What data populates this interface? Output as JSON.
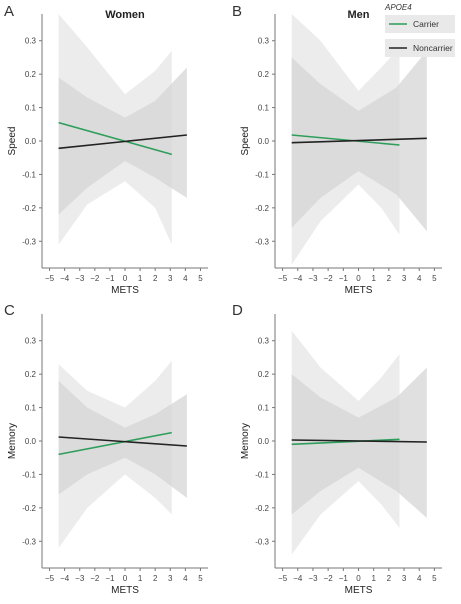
{
  "colors": {
    "carrier": "#2e9e5b",
    "noncarrier": "#222222",
    "band_carrier": "#e6e6e6",
    "band_noncarrier": "#d6d6d6",
    "axis": "#777777",
    "tick_text": "#444444"
  },
  "legend": {
    "title": "APOE4",
    "items": [
      {
        "label": "Carrier",
        "color": "#2e9e5b"
      },
      {
        "label": "Noncarrier",
        "color": "#222222"
      }
    ],
    "placement": "top-right of panel B"
  },
  "chart_data": [
    {
      "panel": "A",
      "type": "line",
      "title": "Women",
      "xlabel": "METS",
      "ylabel": "Speed",
      "xlim": [
        -5.5,
        5.5
      ],
      "ylim": [
        -0.38,
        0.38
      ],
      "xticks": [
        -5,
        -4,
        -3,
        -2,
        -1,
        0,
        1,
        2,
        3,
        4,
        5
      ],
      "yticks": [
        -0.3,
        -0.2,
        -0.1,
        0.0,
        0.1,
        0.2,
        0.3
      ],
      "grid": false,
      "series": [
        {
          "name": "Carrier",
          "x": [
            -4.4,
            3.1
          ],
          "y": [
            0.055,
            -0.04
          ],
          "band_x": [
            -4.4,
            -2.5,
            0,
            2,
            3.1
          ],
          "band_lower": [
            -0.31,
            -0.19,
            -0.12,
            -0.2,
            -0.31
          ],
          "band_upper": [
            0.42,
            0.28,
            0.14,
            0.21,
            0.27
          ]
        },
        {
          "name": "Noncarrier",
          "x": [
            -4.4,
            4.1
          ],
          "y": [
            -0.022,
            0.018
          ],
          "band_x": [
            -4.4,
            -2.5,
            0,
            2,
            4.1
          ],
          "band_lower": [
            -0.22,
            -0.14,
            -0.06,
            -0.11,
            -0.17
          ],
          "band_upper": [
            0.19,
            0.13,
            0.07,
            0.12,
            0.22
          ]
        }
      ]
    },
    {
      "panel": "B",
      "type": "line",
      "title": "Men",
      "xlabel": "METS",
      "ylabel": "Speed",
      "xlim": [
        -5.5,
        5.5
      ],
      "ylim": [
        -0.38,
        0.38
      ],
      "xticks": [
        -5,
        -4,
        -3,
        -2,
        -1,
        0,
        1,
        2,
        3,
        4,
        5
      ],
      "yticks": [
        -0.3,
        -0.2,
        -0.1,
        0.0,
        0.1,
        0.2,
        0.3
      ],
      "grid": false,
      "series": [
        {
          "name": "Carrier",
          "x": [
            -4.4,
            2.7
          ],
          "y": [
            0.018,
            -0.012
          ],
          "band_x": [
            -4.4,
            -2.5,
            0,
            1.5,
            2.7
          ],
          "band_lower": [
            -0.37,
            -0.24,
            -0.13,
            -0.2,
            -0.28
          ],
          "band_upper": [
            0.42,
            0.3,
            0.15,
            0.22,
            0.28
          ]
        },
        {
          "name": "Noncarrier",
          "x": [
            -4.4,
            4.5
          ],
          "y": [
            -0.005,
            0.008
          ],
          "band_x": [
            -4.4,
            -2.5,
            0,
            2.5,
            4.5
          ],
          "band_lower": [
            -0.26,
            -0.17,
            -0.09,
            -0.16,
            -0.27
          ],
          "band_upper": [
            0.25,
            0.17,
            0.09,
            0.16,
            0.27
          ]
        }
      ]
    },
    {
      "panel": "C",
      "type": "line",
      "title": "",
      "xlabel": "METS",
      "ylabel": "Memory",
      "xlim": [
        -5.5,
        5.5
      ],
      "ylim": [
        -0.38,
        0.38
      ],
      "xticks": [
        -5,
        -4,
        -3,
        -2,
        -1,
        0,
        1,
        2,
        3,
        4,
        5
      ],
      "yticks": [
        -0.3,
        -0.2,
        -0.1,
        0.0,
        0.1,
        0.2,
        0.3
      ],
      "grid": false,
      "series": [
        {
          "name": "Carrier",
          "x": [
            -4.4,
            3.1
          ],
          "y": [
            -0.04,
            0.025
          ],
          "band_x": [
            -4.4,
            -2.5,
            0,
            2,
            3.1
          ],
          "band_lower": [
            -0.32,
            -0.2,
            -0.1,
            -0.17,
            -0.22
          ],
          "band_upper": [
            0.23,
            0.15,
            0.1,
            0.18,
            0.24
          ]
        },
        {
          "name": "Noncarrier",
          "x": [
            -4.4,
            4.1
          ],
          "y": [
            0.012,
            -0.015
          ],
          "band_x": [
            -4.4,
            -2.5,
            0,
            2,
            4.1
          ],
          "band_lower": [
            -0.16,
            -0.1,
            -0.05,
            -0.1,
            -0.17
          ],
          "band_upper": [
            0.18,
            0.1,
            0.04,
            0.08,
            0.14
          ]
        }
      ]
    },
    {
      "panel": "D",
      "type": "line",
      "title": "",
      "xlabel": "METS",
      "ylabel": "Memory",
      "xlim": [
        -5.5,
        5.5
      ],
      "ylim": [
        -0.38,
        0.38
      ],
      "xticks": [
        -5,
        -4,
        -3,
        -2,
        -1,
        0,
        1,
        2,
        3,
        4,
        5
      ],
      "yticks": [
        -0.3,
        -0.2,
        -0.1,
        0.0,
        0.1,
        0.2,
        0.3
      ],
      "grid": false,
      "series": [
        {
          "name": "Carrier",
          "x": [
            -4.4,
            2.7
          ],
          "y": [
            -0.01,
            0.005
          ],
          "band_x": [
            -4.4,
            -2.5,
            0,
            1.5,
            2.7
          ],
          "band_lower": [
            -0.34,
            -0.22,
            -0.12,
            -0.19,
            -0.26
          ],
          "band_upper": [
            0.33,
            0.22,
            0.12,
            0.19,
            0.26
          ]
        },
        {
          "name": "Noncarrier",
          "x": [
            -4.4,
            4.5
          ],
          "y": [
            0.003,
            -0.003
          ],
          "band_x": [
            -4.4,
            -2.5,
            0,
            2.5,
            4.5
          ],
          "band_lower": [
            -0.22,
            -0.15,
            -0.08,
            -0.15,
            -0.23
          ],
          "band_upper": [
            0.2,
            0.13,
            0.07,
            0.13,
            0.22
          ]
        }
      ]
    }
  ]
}
